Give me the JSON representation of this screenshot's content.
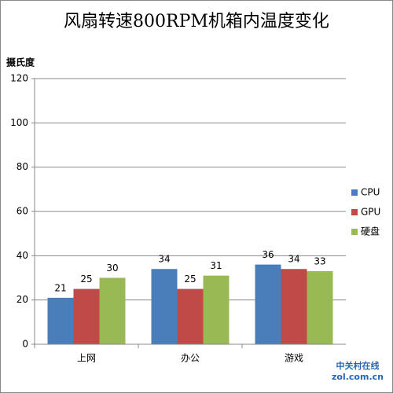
{
  "chart_data": {
    "type": "bar",
    "title": "风扇转速800RPM机箱内温度变化",
    "y_label": "摄氏度",
    "categories": [
      "上网",
      "办公",
      "游戏"
    ],
    "series": [
      {
        "name": "CPU",
        "color": "#4a7ebb",
        "values": [
          21,
          34,
          36
        ]
      },
      {
        "name": "GPU",
        "color": "#be4b48",
        "values": [
          25,
          25,
          34
        ]
      },
      {
        "name": "硬盘",
        "color": "#98b954",
        "values": [
          30,
          31,
          33
        ]
      }
    ],
    "ylim": [
      0,
      120
    ],
    "yticks": [
      0,
      20,
      40,
      60,
      80,
      100,
      120
    ],
    "grid": true,
    "legend": "right",
    "watermark": [
      "中关村在线",
      "zol.com.cn"
    ]
  }
}
